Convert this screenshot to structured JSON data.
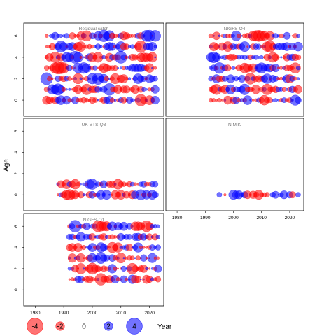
{
  "chart_data": {
    "type": "scatter",
    "subtype": "bubble-residuals",
    "ylabel": "Age",
    "xlabel": "Year",
    "xlim": [
      1976,
      2025
    ],
    "ylim": [
      -1.5,
      7.2
    ],
    "x_ticks": [
      1980,
      1990,
      2000,
      2010,
      2020
    ],
    "y_ticks": [
      0,
      2,
      4,
      6
    ],
    "colors": {
      "positive": "#0000ff",
      "negative": "#ff0000"
    },
    "legend": {
      "placement": "bottom-left",
      "entries": [
        {
          "label": "-4",
          "value": -4
        },
        {
          "label": "-2",
          "value": -2
        },
        {
          "label": "0",
          "value": 0
        },
        {
          "label": "2",
          "value": 2
        },
        {
          "label": "4",
          "value": 4
        }
      ]
    },
    "panels": [
      {
        "title": "Residual catch",
        "years": [
          1984,
          2022
        ],
        "ages": [
          0,
          1,
          2,
          3,
          4,
          5,
          6
        ],
        "seed": 11
      },
      {
        "title": "NIGFS-Q4",
        "years": [
          1992,
          2023
        ],
        "ages": [
          0,
          1,
          2,
          3,
          4,
          5,
          6
        ],
        "seed": 23
      },
      {
        "title": "UK-BTS-Q3",
        "years": [
          1988,
          2022
        ],
        "ages": [
          0,
          1
        ],
        "seed": 37
      },
      {
        "title": "NIMIK",
        "years": [
          1994,
          2023
        ],
        "ages": [
          0
        ],
        "seed": 41,
        "sparse": true
      },
      {
        "title": "NIGFS-Q1",
        "years": [
          1992,
          2023
        ],
        "ages": [
          1,
          2,
          3,
          4,
          5,
          6
        ],
        "seed": 53
      }
    ]
  }
}
